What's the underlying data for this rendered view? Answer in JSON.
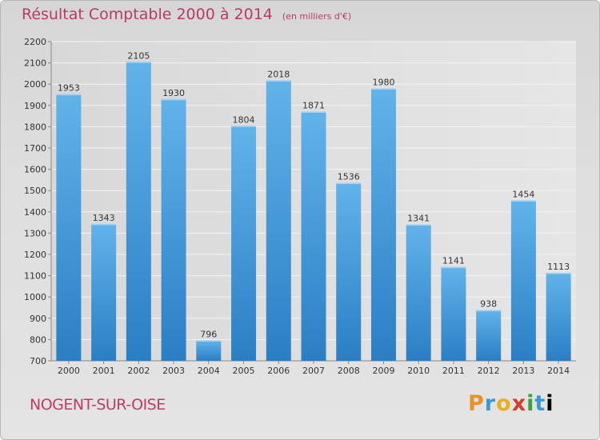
{
  "chart_data": {
    "type": "bar",
    "title": "Résultat Comptable 2000 à 2014",
    "subtitle": "(en milliers d'€)",
    "categories": [
      "2000",
      "2001",
      "2002",
      "2003",
      "2004",
      "2005",
      "2006",
      "2007",
      "2008",
      "2009",
      "2010",
      "2011",
      "2012",
      "2013",
      "2014"
    ],
    "values": [
      1953,
      1343,
      2105,
      1930,
      796,
      1804,
      2018,
      1871,
      1536,
      1980,
      1341,
      1141,
      938,
      1454,
      1113
    ],
    "ylim": [
      700,
      2200
    ],
    "yticks": [
      700,
      800,
      900,
      1000,
      1100,
      1200,
      1300,
      1400,
      1500,
      1600,
      1700,
      1800,
      1900,
      2000,
      2100,
      2200
    ],
    "xlabel": "",
    "ylabel": "",
    "grid": true
  },
  "footer": {
    "city": "NOGENT-SUR-OISE",
    "logo": "Proxiti"
  },
  "colors": {
    "title": "#b83a6a",
    "bar_light": "#62b3ea",
    "bar_dark": "#2a7fc4"
  }
}
